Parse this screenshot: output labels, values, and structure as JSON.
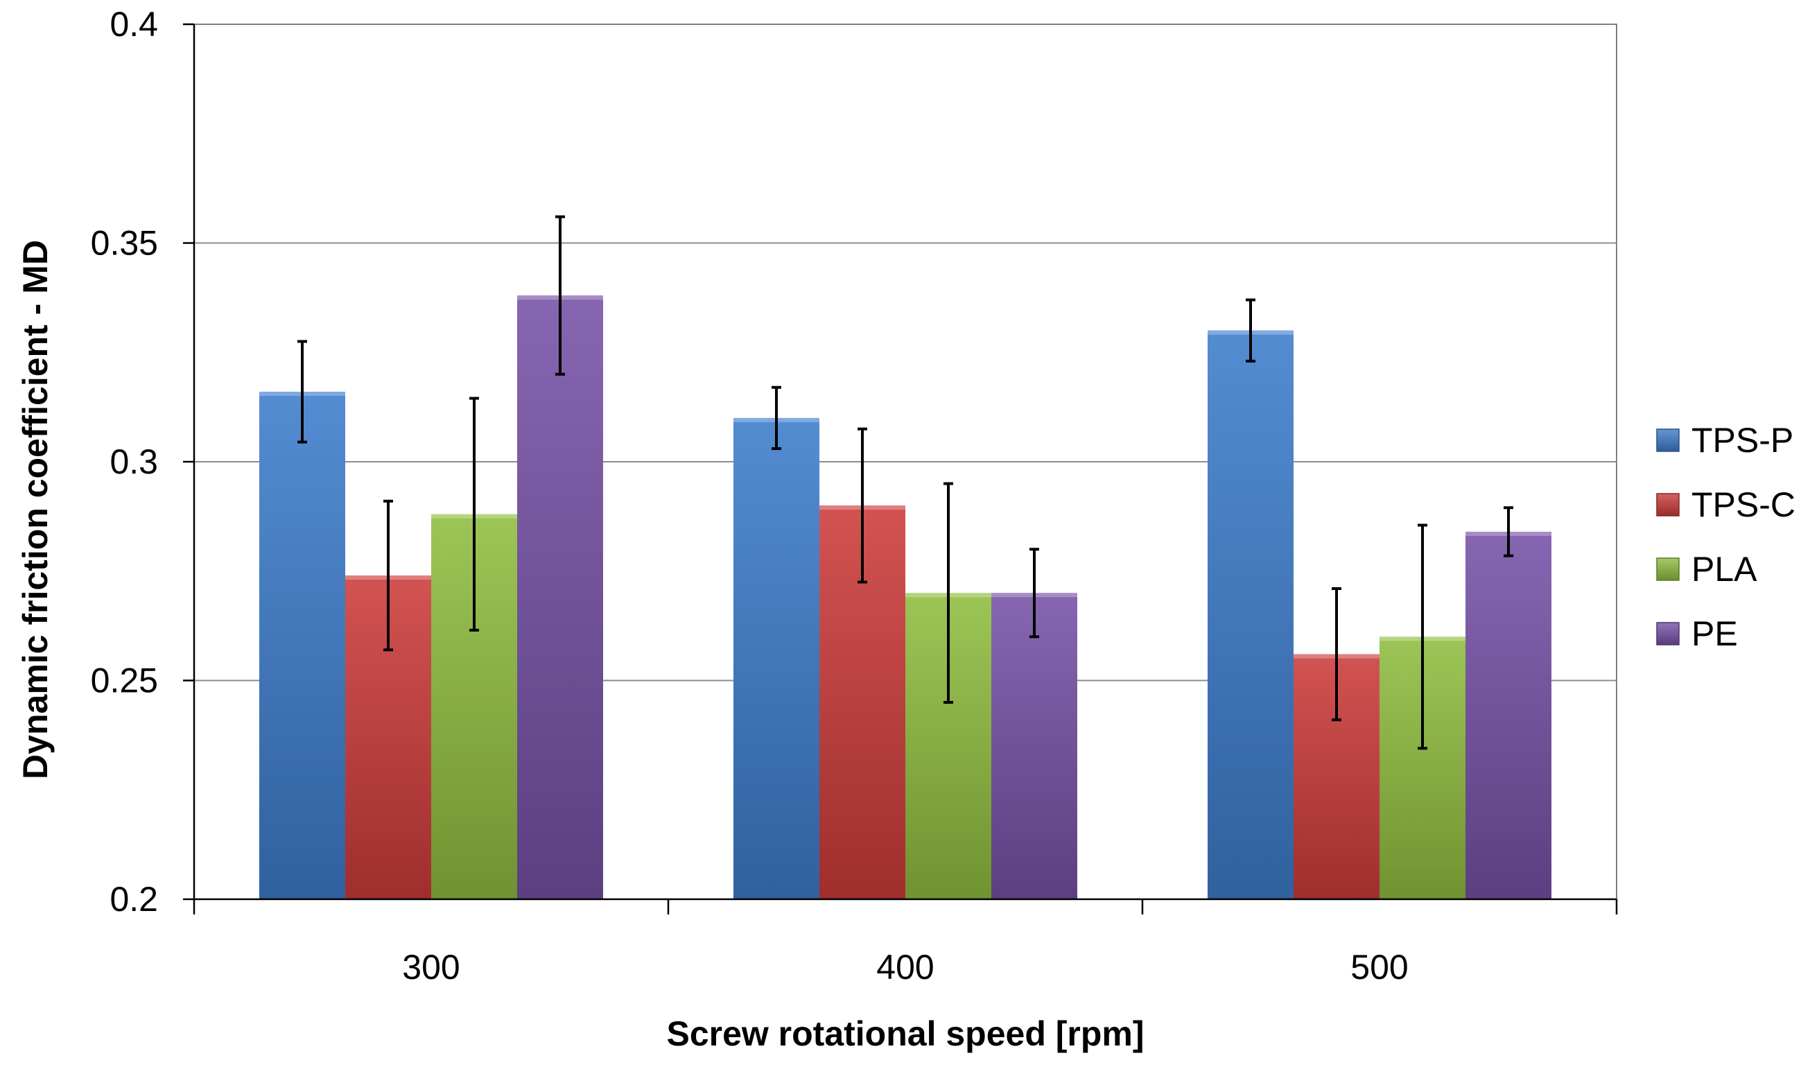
{
  "chart_data": {
    "type": "bar",
    "title": "",
    "xlabel": "Screw rotational speed [rpm]",
    "ylabel": "Dynamic friction coefficient  - MD",
    "categories": [
      "300",
      "400",
      "500"
    ],
    "ylim": [
      0.2,
      0.4
    ],
    "yticks": [
      0.2,
      0.25,
      0.3,
      0.35,
      0.4
    ],
    "ytick_labels": [
      "0.2",
      "0.25",
      "0.3",
      "0.35",
      "0.4"
    ],
    "grid": true,
    "legend_position": "right",
    "series": [
      {
        "name": "TPS-P",
        "color": "#3d7ccc",
        "values": [
          0.316,
          0.31,
          0.33
        ],
        "errors": [
          0.0115,
          0.007,
          0.007
        ]
      },
      {
        "name": "TPS-C",
        "color": "#cc3b3a",
        "values": [
          0.274,
          0.29,
          0.256
        ],
        "errors": [
          0.017,
          0.0175,
          0.015
        ]
      },
      {
        "name": "PLA",
        "color": "#8fbd3f",
        "values": [
          0.288,
          0.27,
          0.26
        ],
        "errors": [
          0.0265,
          0.025,
          0.0255
        ]
      },
      {
        "name": "PE",
        "color": "#7651a6",
        "values": [
          0.338,
          0.27,
          0.284
        ],
        "errors": [
          0.018,
          0.01,
          0.0055
        ]
      }
    ]
  }
}
